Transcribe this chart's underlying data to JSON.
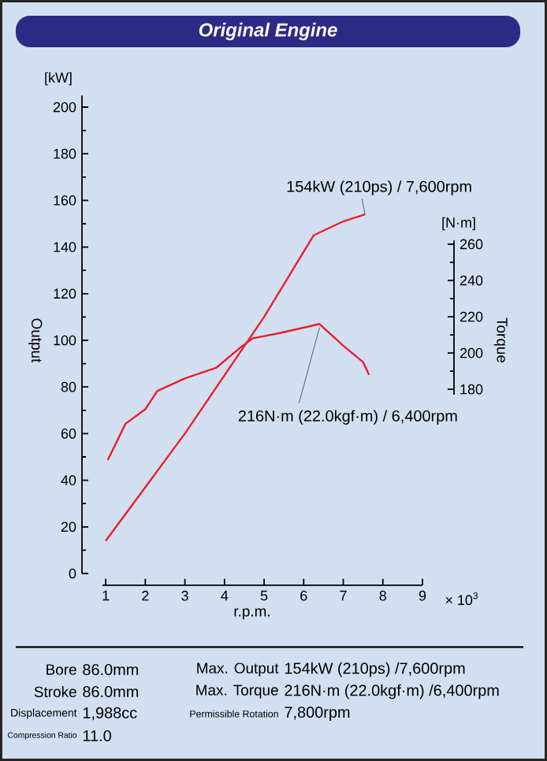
{
  "chart_data": {
    "type": "line",
    "title": "Original Engine",
    "xlabel": "r.p.m.",
    "ylabel": "Output",
    "y2label": "Torque",
    "xlim": [
      0.4,
      9
    ],
    "xticks": [
      1,
      2,
      3,
      4,
      5,
      6,
      7,
      8,
      9
    ],
    "ylim": [
      -5,
      205
    ],
    "yticks": [
      0,
      20,
      40,
      60,
      80,
      100,
      120,
      140,
      160,
      180,
      200
    ],
    "y2lim": [
      72,
      342
    ],
    "y2ticks": [
      180,
      200,
      220,
      240,
      260
    ],
    "series": [
      {
        "color": "#e8202a",
        "x": [
          1.0,
          2,
          3,
          4,
          5,
          6.25,
          7,
          7.55
        ],
        "values": [
          14,
          37,
          60,
          85,
          110,
          145,
          151,
          154
        ]
      },
      {
        "color": "#e8202a",
        "axis": "y2",
        "x": [
          1.05,
          1.5,
          2.0,
          2.3,
          3.0,
          3.8,
          4.4,
          4.7,
          5.4,
          6.4,
          7.0,
          7.5,
          7.65
        ],
        "values": [
          141,
          161,
          169,
          179,
          186,
          192,
          203,
          208,
          211,
          216,
          204,
          195,
          188
        ]
      }
    ],
    "annotations": [
      "[kW]",
      "[N·m]",
      "× 10$^{3}$",
      {
        "text": "154kW (210ps) / 7,600rpm",
        "x": 7.55,
        "y": 154
      },
      {
        "text": "216N·m (22.0kgf·m) / 6,400rpm",
        "x": 6.4,
        "y": 105.5
      },
      "Bore",
      "86.0mm",
      "Max. Output",
      "154kW (210ps) /7,600rpm",
      "Stroke",
      "86.0mm",
      "Max. Torque",
      "216N·m (22.0kgf·m) /6,400rpm",
      "Displacement",
      "1,988cc",
      "Permissible Rotation",
      "7,800rpm",
      "Compression Ratio",
      "11.0"
    ]
  }
}
